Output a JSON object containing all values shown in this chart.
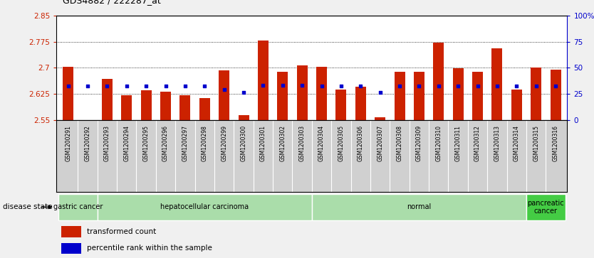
{
  "title": "GDS4882 / 222287_at",
  "samples": [
    "GSM1200291",
    "GSM1200292",
    "GSM1200293",
    "GSM1200294",
    "GSM1200295",
    "GSM1200296",
    "GSM1200297",
    "GSM1200298",
    "GSM1200299",
    "GSM1200300",
    "GSM1200301",
    "GSM1200302",
    "GSM1200303",
    "GSM1200304",
    "GSM1200305",
    "GSM1200306",
    "GSM1200307",
    "GSM1200308",
    "GSM1200309",
    "GSM1200310",
    "GSM1200311",
    "GSM1200312",
    "GSM1200313",
    "GSM1200314",
    "GSM1200315",
    "GSM1200316"
  ],
  "bar_values": [
    2.703,
    2.55,
    2.668,
    2.622,
    2.636,
    2.632,
    2.622,
    2.612,
    2.693,
    2.563,
    2.778,
    2.688,
    2.707,
    2.703,
    2.638,
    2.645,
    2.558,
    2.688,
    2.688,
    2.773,
    2.698,
    2.688,
    2.755,
    2.638,
    2.7,
    2.695
  ],
  "blue_dot_values": [
    2.648,
    2.648,
    2.648,
    2.648,
    2.648,
    2.648,
    2.648,
    2.648,
    2.638,
    2.63,
    2.65,
    2.65,
    2.65,
    2.648,
    2.648,
    2.648,
    2.63,
    2.648,
    2.648,
    2.648,
    2.648,
    2.648,
    2.648,
    2.648,
    2.648,
    2.648
  ],
  "y_min": 2.55,
  "y_max": 2.85,
  "y_ticks_left": [
    2.55,
    2.625,
    2.7,
    2.775,
    2.85
  ],
  "y_ticks_right": [
    0,
    25,
    50,
    75,
    100
  ],
  "bar_color": "#cc2200",
  "dot_color": "#0000cc",
  "group_boundaries": [
    {
      "label": "gastric cancer",
      "start": 0,
      "end": 2,
      "color": "#aaddaa",
      "dark": false
    },
    {
      "label": "hepatocellular carcinoma",
      "start": 2,
      "end": 13,
      "color": "#aaddaa",
      "dark": false
    },
    {
      "label": "normal",
      "start": 13,
      "end": 24,
      "color": "#aaddaa",
      "dark": false
    },
    {
      "label": "pancreatic\ncancer",
      "start": 24,
      "end": 26,
      "color": "#44cc44",
      "dark": true
    }
  ],
  "legend_items": [
    {
      "color": "#cc2200",
      "label": "transformed count"
    },
    {
      "color": "#0000cc",
      "label": "percentile rank within the sample"
    }
  ],
  "bg_color": "#f0f0f0",
  "plot_bg": "#ffffff",
  "xtick_bg": "#d0d0d0",
  "grid_color": "#000000",
  "tick_color_left": "#cc2200",
  "tick_color_right": "#0000cc",
  "disease_state_label": "disease state"
}
